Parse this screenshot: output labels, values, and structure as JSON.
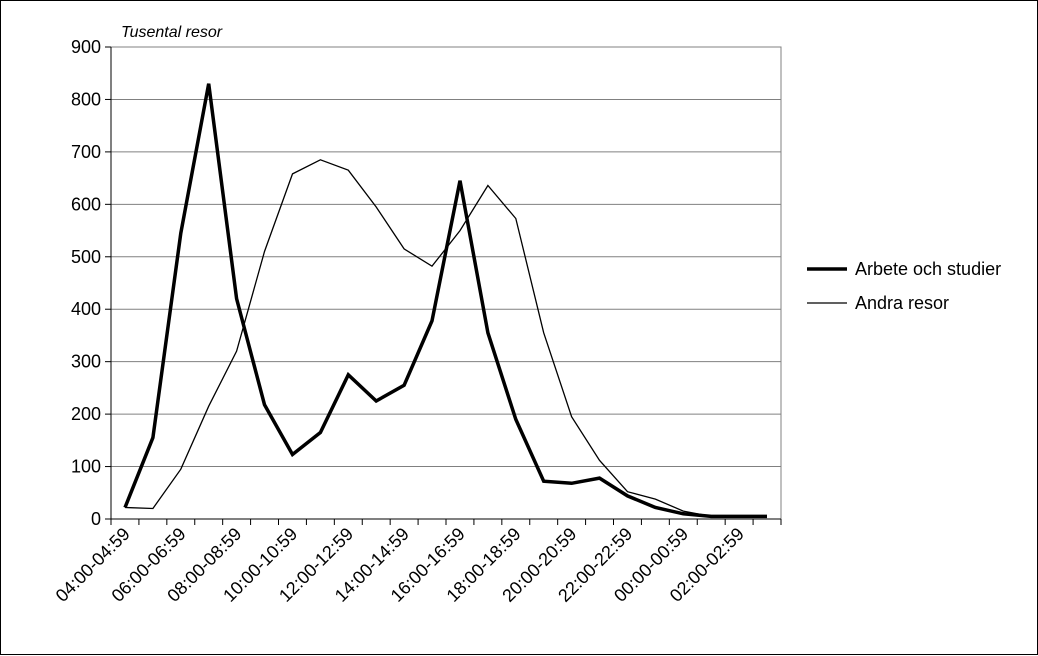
{
  "chart_data": {
    "type": "line",
    "title": "",
    "ylabel": "Tusental resor",
    "xlabel": "",
    "ylim": [
      0,
      900
    ],
    "yticks": [
      0,
      100,
      200,
      300,
      400,
      500,
      600,
      700,
      800,
      900
    ],
    "grid": "horizontal",
    "legend_position": "right",
    "categories": [
      "04:00-04:59",
      "05:00-05:59",
      "06:00-06:59",
      "07:00-07:59",
      "08:00-08:59",
      "09:00-09:59",
      "10:00-10:59",
      "11:00-11:59",
      "12:00-12:59",
      "13:00-13:59",
      "14:00-14:59",
      "15:00-15:59",
      "16:00-16:59",
      "17:00-17:59",
      "18:00-18:59",
      "19:00-19:59",
      "20:00-20:59",
      "21:00-21:59",
      "22:00-22:59",
      "23:00-23:59",
      "00:00-00:59",
      "01:00-01:59",
      "02:00-02:59",
      "03:00-03:59"
    ],
    "tick_labels": [
      "04:00-04:59",
      "06:00-06:59",
      "08:00-08:59",
      "10:00-10:59",
      "12:00-12:59",
      "14:00-14:59",
      "16:00-16:59",
      "18:00-18:59",
      "20:00-20:59",
      "22:00-22:59",
      "00:00-00:59",
      "02:00-02:59"
    ],
    "series": [
      {
        "name": "Arbete och studier",
        "color": "#000000",
        "width": "bold",
        "values": [
          22,
          155,
          545,
          830,
          420,
          218,
          123,
          165,
          275,
          225,
          255,
          378,
          645,
          355,
          190,
          72,
          68,
          78,
          44,
          22,
          10,
          5,
          5,
          5
        ]
      },
      {
        "name": "Andra resor",
        "color": "#000000",
        "width": "thin",
        "values": [
          22,
          20,
          95,
          215,
          320,
          510,
          658,
          685,
          665,
          595,
          515,
          482,
          550,
          636,
          573,
          355,
          195,
          112,
          52,
          38,
          15,
          5,
          5,
          5
        ]
      }
    ]
  }
}
